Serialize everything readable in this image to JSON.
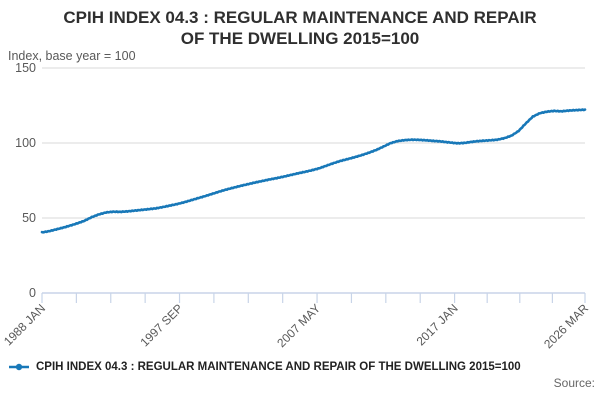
{
  "title": {
    "line1": "CPIH INDEX 04.3 : REGULAR MAINTENANCE AND REPAIR",
    "line2": "OF THE DWELLING 2015=100"
  },
  "subtitle": "Index, base year = 100",
  "source_label": "Source:",
  "legend": {
    "label": "CPIH INDEX 04.3 : REGULAR MAINTENANCE AND REPAIR OF THE DWELLING 2015=100",
    "marker_icon": "line-with-dot-icon"
  },
  "colors": {
    "line": "#1878b8",
    "grid": "#d9d9d9",
    "axis": "#c8d4e8",
    "tick_text": "#595959",
    "title_text": "#2f2f2f",
    "legend_text": "#222222",
    "source_text": "#666666"
  },
  "chart_data": {
    "type": "line",
    "title": "CPIH INDEX 04.3 : REGULAR MAINTENANCE AND REPAIR OF THE DWELLING 2015=100",
    "subtitle": "Index, base year = 100",
    "ylabel": "Index, base year = 100",
    "ylim": [
      0,
      150
    ],
    "yticks": [
      150,
      100,
      50,
      0
    ],
    "grid": "horizontal",
    "x_start": "1988-01",
    "x_end": "2026-03",
    "x_tick_labels": [
      "1988 JAN",
      "1997 SEP",
      "2007 MAY",
      "2017 JAN",
      "2026 MAR"
    ],
    "x_tick_months": [
      "1988-01",
      "1997-09",
      "2007-05",
      "2017-01",
      "2026-03"
    ],
    "minor_ticks_between_labels": 3,
    "legend_position": "bottom-left",
    "series": [
      {
        "name": "CPIH INDEX 04.3 : REGULAR MAINTENANCE AND REPAIR OF THE DWELLING 2015=100",
        "color": "#1878b8",
        "frequency": "monthly",
        "points": [
          [
            "1988-01",
            40.4
          ],
          [
            "1988-07",
            41.2
          ],
          [
            "1989-01",
            42.4
          ],
          [
            "1989-07",
            43.6
          ],
          [
            "1990-01",
            45.0
          ],
          [
            "1990-07",
            46.5
          ],
          [
            "1991-01",
            48.2
          ],
          [
            "1991-07",
            50.6
          ],
          [
            "1992-01",
            52.4
          ],
          [
            "1992-07",
            53.7
          ],
          [
            "1993-01",
            54.2
          ],
          [
            "1993-07",
            54.1
          ],
          [
            "1994-01",
            54.4
          ],
          [
            "1994-07",
            54.9
          ],
          [
            "1995-01",
            55.4
          ],
          [
            "1995-07",
            55.9
          ],
          [
            "1996-01",
            56.4
          ],
          [
            "1996-07",
            57.3
          ],
          [
            "1997-01",
            58.3
          ],
          [
            "1997-07",
            59.3
          ],
          [
            "1998-01",
            60.5
          ],
          [
            "1998-07",
            61.9
          ],
          [
            "1999-01",
            63.3
          ],
          [
            "1999-07",
            64.7
          ],
          [
            "2000-01",
            66.2
          ],
          [
            "2000-07",
            67.7
          ],
          [
            "2001-01",
            69.1
          ],
          [
            "2001-07",
            70.3
          ],
          [
            "2002-01",
            71.5
          ],
          [
            "2002-07",
            72.6
          ],
          [
            "2003-01",
            73.7
          ],
          [
            "2003-07",
            74.7
          ],
          [
            "2004-01",
            75.7
          ],
          [
            "2004-07",
            76.6
          ],
          [
            "2005-01",
            77.6
          ],
          [
            "2005-07",
            78.7
          ],
          [
            "2006-01",
            79.8
          ],
          [
            "2006-07",
            80.8
          ],
          [
            "2007-01",
            81.9
          ],
          [
            "2007-07",
            83.2
          ],
          [
            "2008-01",
            84.9
          ],
          [
            "2008-07",
            86.6
          ],
          [
            "2009-01",
            88.1
          ],
          [
            "2009-07",
            89.3
          ],
          [
            "2010-01",
            90.6
          ],
          [
            "2010-07",
            92.0
          ],
          [
            "2011-01",
            93.6
          ],
          [
            "2011-07",
            95.4
          ],
          [
            "2012-01",
            97.6
          ],
          [
            "2012-07",
            99.9
          ],
          [
            "2013-01",
            101.3
          ],
          [
            "2013-07",
            101.9
          ],
          [
            "2014-01",
            102.2
          ],
          [
            "2014-07",
            102.1
          ],
          [
            "2015-01",
            101.8
          ],
          [
            "2015-07",
            101.4
          ],
          [
            "2016-01",
            101.1
          ],
          [
            "2016-07",
            100.5
          ],
          [
            "2017-01",
            100.0
          ],
          [
            "2017-04",
            99.8
          ],
          [
            "2017-10",
            100.1
          ],
          [
            "2018-01",
            100.5
          ],
          [
            "2018-07",
            101.1
          ],
          [
            "2019-01",
            101.5
          ],
          [
            "2019-07",
            101.8
          ],
          [
            "2020-01",
            102.2
          ],
          [
            "2020-07",
            103.2
          ],
          [
            "2021-01",
            104.9
          ],
          [
            "2021-07",
            108.0
          ],
          [
            "2022-01",
            113.0
          ],
          [
            "2022-07",
            117.6
          ],
          [
            "2023-01",
            119.9
          ],
          [
            "2023-07",
            120.9
          ],
          [
            "2024-01",
            121.4
          ],
          [
            "2024-07",
            121.1
          ],
          [
            "2025-01",
            121.6
          ],
          [
            "2025-07",
            121.9
          ],
          [
            "2026-03",
            122.2
          ]
        ]
      }
    ]
  }
}
